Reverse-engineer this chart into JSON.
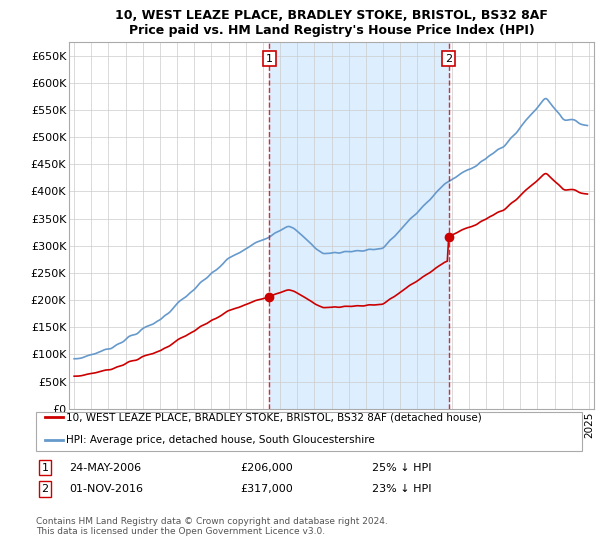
{
  "title": "10, WEST LEAZE PLACE, BRADLEY STOKE, BRISTOL, BS32 8AF",
  "subtitle": "Price paid vs. HM Land Registry's House Price Index (HPI)",
  "ylim": [
    0,
    675000
  ],
  "yticks": [
    0,
    50000,
    100000,
    150000,
    200000,
    250000,
    300000,
    350000,
    400000,
    450000,
    500000,
    550000,
    600000,
    650000
  ],
  "xlim_start": 1994.7,
  "xlim_end": 2025.3,
  "purchase1_x": 2006.38,
  "purchase1_y": 206000,
  "purchase2_x": 2016.83,
  "purchase2_y": 317000,
  "purchase1_label": "1",
  "purchase2_label": "2",
  "vline1_x": 2006.38,
  "vline2_x": 2016.83,
  "legend_line1": "10, WEST LEAZE PLACE, BRADLEY STOKE, BRISTOL, BS32 8AF (detached house)",
  "legend_line2": "HPI: Average price, detached house, South Gloucestershire",
  "annotation1_date": "24-MAY-2006",
  "annotation1_price": "£206,000",
  "annotation1_hpi": "25% ↓ HPI",
  "annotation2_date": "01-NOV-2016",
  "annotation2_price": "£317,000",
  "annotation2_hpi": "23% ↓ HPI",
  "footer": "Contains HM Land Registry data © Crown copyright and database right 2024.\nThis data is licensed under the Open Government Licence v3.0.",
  "line_color_red": "#cc0000",
  "line_color_blue": "#6699cc",
  "shade_color": "#ddeeff",
  "background_color": "#ffffff",
  "grid_color": "#cccccc"
}
